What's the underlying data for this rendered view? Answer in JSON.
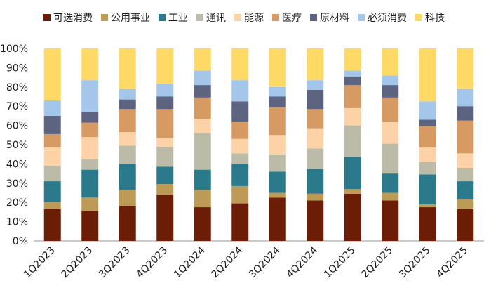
{
  "chart_data": {
    "type": "bar",
    "stacked": true,
    "categories": [
      "1Q2023",
      "2Q2023",
      "3Q2023",
      "4Q2023",
      "1Q2024",
      "2Q2024",
      "3Q2024",
      "4Q2024",
      "1Q2025",
      "2Q2025",
      "3Q2025",
      "4Q2025"
    ],
    "yticks": [
      "0%",
      "10%",
      "20%",
      "30%",
      "40%",
      "50%",
      "60%",
      "70%",
      "80%",
      "90%",
      "100%"
    ],
    "ylim": [
      0,
      100
    ],
    "legend_position": "top",
    "series": [
      {
        "name": "可选消费",
        "color": "#6b1d06",
        "values": [
          16.5,
          15.5,
          18,
          24,
          17.5,
          19.5,
          22.5,
          21,
          24.5,
          21,
          17.5,
          16.5
        ]
      },
      {
        "name": "公用事业",
        "color": "#bd9a55",
        "values": [
          3.5,
          7,
          8.5,
          5.5,
          9,
          9,
          2.5,
          3.5,
          2.5,
          4,
          1.5,
          5
        ]
      },
      {
        "name": "工业",
        "color": "#2b7a8c",
        "values": [
          11,
          14.5,
          13.5,
          9,
          10.5,
          11.5,
          11,
          13,
          16.5,
          10,
          15.5,
          9.5
        ]
      },
      {
        "name": "通讯",
        "color": "#bcbba7",
        "values": [
          8,
          5.5,
          9.5,
          10.5,
          19,
          5.5,
          9,
          10.5,
          16.5,
          15.5,
          6.5,
          7
        ]
      },
      {
        "name": "能源",
        "color": "#fcd2a6",
        "values": [
          9.5,
          11.5,
          7,
          4.5,
          7.5,
          7.5,
          10,
          10.5,
          9,
          11.5,
          7.5,
          7.5
        ]
      },
      {
        "name": "医疗",
        "color": "#d79a62",
        "values": [
          7,
          7.5,
          12,
          15,
          11,
          9,
          14.5,
          10,
          12,
          12.5,
          11,
          17
        ]
      },
      {
        "name": "原材料",
        "color": "#5d6481",
        "values": [
          9.5,
          5.5,
          5,
          6.5,
          6.5,
          10.5,
          5.5,
          10,
          4.5,
          6.5,
          3.5,
          7.5
        ]
      },
      {
        "name": "必须消费",
        "color": "#a3c6ea",
        "values": [
          8,
          16.5,
          5.5,
          6.5,
          7.5,
          11,
          5,
          5,
          3,
          5,
          9.5,
          9
        ]
      },
      {
        "name": "科技",
        "color": "#fed966",
        "values": [
          27,
          16.5,
          21,
          18.5,
          11.5,
          16.5,
          20,
          16.5,
          11.5,
          14,
          27.5,
          21
        ]
      }
    ]
  }
}
